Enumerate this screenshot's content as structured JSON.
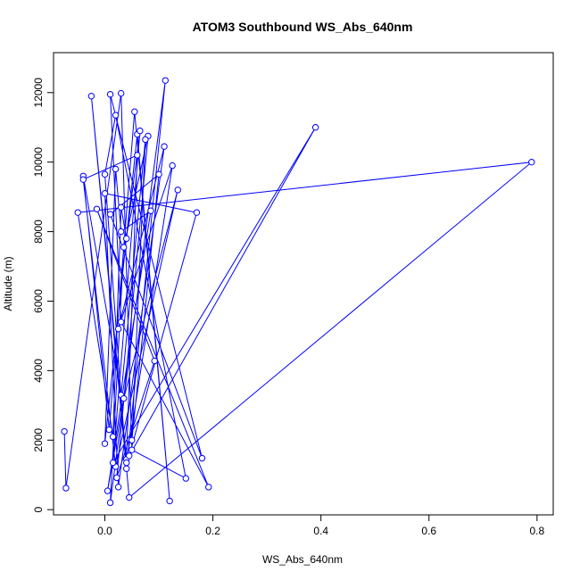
{
  "chart_data": {
    "type": "line",
    "title": "ATOM3 Southbound WS_Abs_640nm",
    "xlabel": "WS_Abs_640nm",
    "ylabel": "Altitude (m)",
    "xlim": [
      -0.095,
      0.83
    ],
    "ylim": [
      -150,
      13150
    ],
    "x_ticks": [
      0.0,
      0.2,
      0.4,
      0.6,
      0.8
    ],
    "x_tick_labels": [
      "0.0",
      "0.2",
      "0.4",
      "0.6",
      "0.8"
    ],
    "y_ticks": [
      0,
      2000,
      4000,
      6000,
      8000,
      10000,
      12000
    ],
    "y_tick_labels": [
      "0",
      "2000",
      "4000",
      "6000",
      "8000",
      "10000",
      "12000"
    ],
    "grid": false,
    "legend": "none",
    "series": [
      {
        "color": "#0000ff",
        "marker": "open-circle",
        "points": [
          {
            "x": -0.075,
            "y": 2250
          },
          {
            "x": -0.072,
            "y": 620
          },
          {
            "x": 0.03,
            "y": 11980
          },
          {
            "x": 0.05,
            "y": 1720
          },
          {
            "x": 0.15,
            "y": 900
          },
          {
            "x": 0.02,
            "y": 11350
          },
          {
            "x": 0.0,
            "y": 9650
          },
          {
            "x": 0.04,
            "y": 1180
          },
          {
            "x": 0.112,
            "y": 12350
          },
          {
            "x": 0.01,
            "y": 200
          },
          {
            "x": 0.035,
            "y": 7550
          },
          {
            "x": 0.08,
            "y": 10750
          },
          {
            "x": 0.022,
            "y": 920
          },
          {
            "x": 0.092,
            "y": 4280
          },
          {
            "x": -0.015,
            "y": 8650
          },
          {
            "x": 0.192,
            "y": 650
          },
          {
            "x": 0.03,
            "y": 5400
          },
          {
            "x": 0.01,
            "y": 11950
          },
          {
            "x": 0.18,
            "y": 1480
          },
          {
            "x": 0.01,
            "y": 8500
          },
          {
            "x": 0.1,
            "y": 9650
          },
          {
            "x": 0.05,
            "y": 2000
          },
          {
            "x": 0.075,
            "y": 10650
          },
          {
            "x": 0.03,
            "y": 3300
          },
          {
            "x": -0.04,
            "y": 9600
          },
          {
            "x": 0.008,
            "y": 2300
          },
          {
            "x": 0.055,
            "y": 11450
          },
          {
            "x": 0.12,
            "y": 250
          },
          {
            "x": 0.06,
            "y": 10800
          },
          {
            "x": 0.0,
            "y": 1900
          },
          {
            "x": 0.02,
            "y": 9800
          },
          {
            "x": 0.03,
            "y": 8000
          },
          {
            "x": 0.085,
            "y": 8600
          },
          {
            "x": 0.005,
            "y": 540
          },
          {
            "x": 0.035,
            "y": 3200
          },
          {
            "x": 0.135,
            "y": 9200
          },
          {
            "x": 0.02,
            "y": 1240
          },
          {
            "x": -0.04,
            "y": 9500
          },
          {
            "x": 0.06,
            "y": 10200
          },
          {
            "x": 0.04,
            "y": 1450
          },
          {
            "x": -0.025,
            "y": 11900
          },
          {
            "x": 0.045,
            "y": 350
          },
          {
            "x": 0.79,
            "y": 10000
          },
          {
            "x": -0.05,
            "y": 8550
          },
          {
            "x": 0.015,
            "y": 2100
          },
          {
            "x": 0.03,
            "y": 8700
          },
          {
            "x": 0.04,
            "y": 7800
          },
          {
            "x": 0.065,
            "y": 10900
          },
          {
            "x": 0.015,
            "y": 1350
          },
          {
            "x": 0.39,
            "y": 11000
          },
          {
            "x": 0.045,
            "y": 1550
          },
          {
            "x": 0.17,
            "y": 8550
          },
          {
            "x": 0.0,
            "y": 9100
          },
          {
            "x": 0.025,
            "y": 650
          },
          {
            "x": 0.11,
            "y": 10450
          },
          {
            "x": 0.025,
            "y": 5200
          },
          {
            "x": 0.125,
            "y": 9900
          },
          {
            "x": 0.04,
            "y": 1350
          }
        ]
      }
    ]
  }
}
